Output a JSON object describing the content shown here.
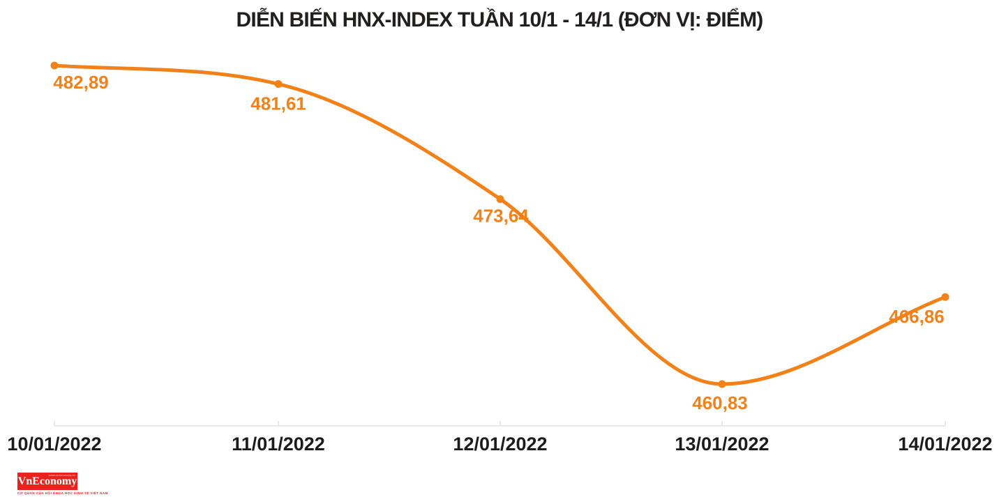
{
  "title": "DIỄN BIẾN HNX-INDEX TUẦN 10/1 - 14/1 (ĐƠN VỊ: ĐIỂM)",
  "chart_data": {
    "type": "line",
    "series_name": "HNX-Index",
    "categories": [
      "10/01/2022",
      "11/01/2022",
      "12/01/2022",
      "13/01/2022",
      "14/01/2022"
    ],
    "values": [
      482.89,
      481.61,
      473.64,
      460.83,
      466.86
    ],
    "point_labels": [
      "482,89",
      "481,61",
      "473,64",
      "460,83",
      "466,86"
    ],
    "title": "DIỄN BIẾN HNX-INDEX TUẦN 10/1 - 14/1 (ĐƠN VỊ: ĐIỂM)",
    "xlabel": "",
    "ylabel": "",
    "ylim": [
      458,
      484
    ],
    "grid": false,
    "legend": "none",
    "curve": "smooth-monotone",
    "unit": "ĐIỂM"
  },
  "colors": {
    "line": "#F28118",
    "marker": "#F28118",
    "point_label": "#F28118",
    "title_text": "#221f1f",
    "axis_line": "#e2e2e2",
    "axis_label": "#1d1b1b",
    "logo_bg": "#e8231e",
    "logo_text": "#ffffff"
  },
  "logo": {
    "brand": "VnEconomy",
    "url_text": "www.vneconomy.vn",
    "tagline": "CƠ QUAN CỦA HỘI KHOA HỌC KINH TẾ VIỆT NAM"
  }
}
